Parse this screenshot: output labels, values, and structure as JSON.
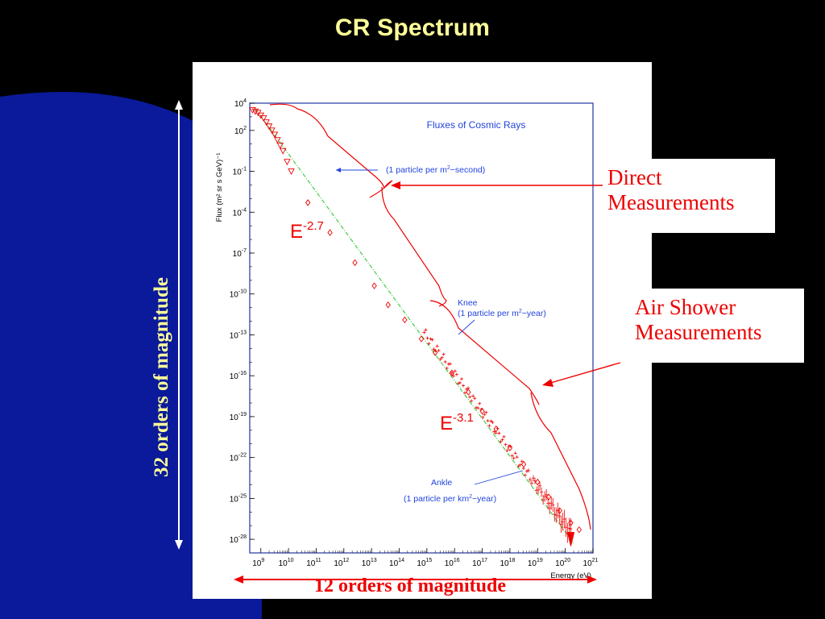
{
  "slide": {
    "title": "CR Spectrum",
    "left_arrow_label": "32 orders of magnitude",
    "bottom_arrow_label": "12 orders of magnitude",
    "callout_direct": [
      "Direct",
      "Measurements"
    ],
    "callout_air": [
      "Air Shower",
      "Measurements"
    ],
    "slope_label_1": {
      "base": "E",
      "exp": "-2.7"
    },
    "slope_label_2": {
      "base": "E",
      "exp": "-3.1"
    }
  },
  "colors": {
    "title": "#ffff99",
    "red": "#ee0000",
    "blue_annotation": "#2244dd",
    "fit_line": "#44cc44",
    "frame": "#3344aa",
    "background": "#000000",
    "gradient_blue": "#0a1a9a"
  },
  "chart_data": {
    "type": "scatter",
    "title": "Fluxes of Cosmic Rays",
    "xlabel": "Energy (eV)",
    "ylabel": "Flux (m² sr s GeV)⁻¹",
    "x_scale": "log",
    "y_scale": "log",
    "x_ticks_exp": [
      "9",
      "10",
      "11",
      "12",
      "13",
      "14",
      "15",
      "16",
      "17",
      "18",
      "19",
      "20",
      "21"
    ],
    "y_ticks_exp": [
      "4",
      "2",
      "-1",
      "-4",
      "-7",
      "-10",
      "-13",
      "-16",
      "-19",
      "-22",
      "-25",
      "-28"
    ],
    "tick_base": "10",
    "xlim_log10": [
      8.6,
      21.0
    ],
    "ylim_log10": [
      -29,
      4
    ],
    "annotations": [
      {
        "text_parts": [
          "(1 particle per m",
          "2",
          "−second)"
        ],
        "arrow_to_log": [
          9.8,
          -0.1
        ]
      },
      {
        "text_parts": [
          "Knee"
        ],
        "arrow_to_log": [
          15.8,
          -13.2
        ]
      },
      {
        "text_parts": [
          "(1 particle per m",
          "2",
          "−year)"
        ]
      },
      {
        "text_parts": [
          "Ankle"
        ],
        "arrow_to_log": [
          18.5,
          -23.3
        ]
      },
      {
        "text_parts": [
          "(1 particle per km",
          "2",
          "−year)"
        ]
      }
    ],
    "series": [
      {
        "marker": "triangle",
        "points": [
          [
            8.7,
            3.5
          ],
          [
            8.8,
            3.4
          ],
          [
            8.9,
            3.3
          ],
          [
            9.0,
            3.1
          ],
          [
            9.1,
            2.9
          ],
          [
            9.2,
            2.6
          ],
          [
            9.3,
            2.3
          ],
          [
            9.4,
            2.0
          ],
          [
            9.5,
            1.7
          ],
          [
            9.6,
            1.3
          ],
          [
            9.7,
            0.9
          ],
          [
            9.8,
            0.5
          ],
          [
            9.95,
            -0.3
          ],
          [
            10.1,
            -1.0
          ]
        ]
      },
      {
        "marker": "diamond",
        "points": [
          [
            10.7,
            -3.3
          ],
          [
            11.5,
            -5.5
          ],
          [
            12.4,
            -7.7
          ],
          [
            13.1,
            -9.4
          ],
          [
            13.6,
            -10.8
          ],
          [
            14.2,
            -11.9
          ],
          [
            14.8,
            -13.3
          ],
          [
            15.3,
            -14.3
          ],
          [
            15.9,
            -15.8
          ],
          [
            16.5,
            -17.2
          ],
          [
            17.0,
            -18.6
          ],
          [
            17.5,
            -19.9
          ],
          [
            18.0,
            -21.3
          ],
          [
            18.5,
            -22.5
          ],
          [
            19.0,
            -23.8
          ],
          [
            19.4,
            -24.9
          ],
          [
            19.8,
            -25.9
          ],
          [
            20.2,
            -26.8
          ],
          [
            20.5,
            -27.3
          ]
        ]
      }
    ],
    "fit_line_log": [
      [
        8.8,
        3.6
      ],
      [
        20.3,
        -28.3
      ]
    ]
  }
}
